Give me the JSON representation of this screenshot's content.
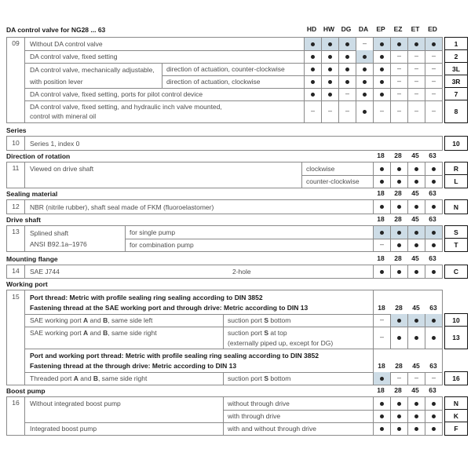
{
  "colors": {
    "highlight": "#cddce6",
    "grid_border": "#8a8a8a",
    "code_border": "#141414",
    "text": "#4d4d4d",
    "heading": "#1a1a1a"
  },
  "s09": {
    "title": "DA control valve for NG28 ... 63",
    "num": "09",
    "columns": [
      "HD",
      "HW",
      "DG",
      "DA",
      "EP",
      "EZ",
      "ET",
      "ED"
    ],
    "r1": {
      "desc": "Without DA control valve",
      "cells": [
        "●",
        "●",
        "●",
        "–",
        "●",
        "●",
        "●",
        "●"
      ],
      "hl": [
        1,
        1,
        1,
        0,
        1,
        1,
        1,
        1
      ],
      "code": "1"
    },
    "r2": {
      "desc": "DA control valve, fixed setting",
      "cells": [
        "●",
        "●",
        "●",
        "●",
        "●",
        "–",
        "–",
        "–"
      ],
      "hl": [
        0,
        0,
        0,
        1,
        0,
        0,
        0,
        0
      ],
      "code": "2"
    },
    "r34_desc": "DA control valve, mechanically adjustable,\nwith position lever",
    "r3": {
      "sub": "direction of actuation, counter-clockwise",
      "cells": [
        "●",
        "●",
        "●",
        "●",
        "●",
        "–",
        "–",
        "–"
      ],
      "code": "3L"
    },
    "r4": {
      "sub": "direction of actuation, clockwise",
      "cells": [
        "●",
        "●",
        "●",
        "●",
        "●",
        "–",
        "–",
        "–"
      ],
      "code": "3R"
    },
    "r5": {
      "desc": "DA control valve, fixed setting, ports for pilot control device",
      "cells": [
        "●",
        "●",
        "–",
        "●",
        "●",
        "–",
        "–",
        "–"
      ],
      "code": "7"
    },
    "r6": {
      "desc": "DA control valve, fixed setting, and hydraulic inch valve mounted,\ncontrol with mineral oil",
      "cells": [
        "–",
        "–",
        "–",
        "●",
        "–",
        "–",
        "–",
        "–"
      ],
      "code": "8"
    }
  },
  "series": {
    "title": "Series",
    "num": "10",
    "desc": "Series 1, index 0",
    "code": "10"
  },
  "rotation": {
    "title": "Direction of rotation",
    "columns": [
      "18",
      "28",
      "45",
      "63"
    ],
    "num": "11",
    "desc": "Viewed on drive shaft",
    "r1": {
      "sub": "clockwise",
      "cells": [
        "●",
        "●",
        "●",
        "●"
      ],
      "code": "R"
    },
    "r2": {
      "sub": "counter-clockwise",
      "cells": [
        "●",
        "●",
        "●",
        "●"
      ],
      "code": "L"
    }
  },
  "sealing": {
    "title": "Sealing material",
    "columns": [
      "18",
      "28",
      "45",
      "63"
    ],
    "num": "12",
    "desc": "NBR (nitrile rubber), shaft seal made of FKM (fluoroelastomer)",
    "cells": [
      "●",
      "●",
      "●",
      "●"
    ],
    "code": "N"
  },
  "drive": {
    "title": "Drive shaft",
    "columns": [
      "18",
      "28",
      "45",
      "63"
    ],
    "num": "13",
    "desc": "Splined shaft\nANSI B92.1a–1976",
    "r1": {
      "sub": "for single pump",
      "cells": [
        "●",
        "●",
        "●",
        "●"
      ],
      "hl": [
        1,
        1,
        1,
        1
      ],
      "code": "S"
    },
    "r2": {
      "sub": "for combination pump",
      "cells": [
        "–",
        "●",
        "●",
        "●"
      ],
      "code": "T"
    }
  },
  "mounting": {
    "title": "Mounting flange",
    "columns": [
      "18",
      "28",
      "45",
      "63"
    ],
    "num": "14",
    "desc": "SAE J744",
    "sub": "2-hole",
    "cells": [
      "●",
      "●",
      "●",
      "●"
    ],
    "code": "C"
  },
  "working": {
    "title": "Working port",
    "columns": [
      "18",
      "28",
      "45",
      "63"
    ],
    "num": "15",
    "h1": "Port thread: Metric with profile sealing ring sealing according to DIN 3852\nFastening thread at the SAE working port and through drive: Metric according to DIN 13",
    "r10": {
      "desc": "SAE working port **A** and **B**, same side left",
      "sub": "suction port **S** bottom",
      "cells": [
        "–",
        "●",
        "●",
        "●"
      ],
      "hl": [
        0,
        1,
        1,
        1
      ],
      "code": "10"
    },
    "r13": {
      "desc": "SAE working port **A** and **B**, same side right",
      "sub": "suction port **S** at top\n(externally piped up, except for DG)",
      "cells": [
        "–",
        "●",
        "●",
        "●"
      ],
      "code": "13"
    },
    "h2": "Port and working port thread: Metric with profile sealing ring sealing according to DIN 3852\nFastening thread at the through drive: Metric according to DIN 13",
    "r16": {
      "desc": "Threaded port **A** and **B**, same side right",
      "sub": "suction port **S** bottom",
      "cells": [
        "●",
        "–",
        "–",
        "–"
      ],
      "hl": [
        1,
        0,
        0,
        0
      ],
      "code": "16"
    }
  },
  "boost": {
    "title": "Boost pump",
    "columns": [
      "18",
      "28",
      "45",
      "63"
    ],
    "num": "16",
    "r1": {
      "desc": "Without integrated boost pump",
      "sub": "without through drive",
      "cells": [
        "●",
        "●",
        "●",
        "●"
      ],
      "code": "N"
    },
    "r2": {
      "sub": "with through drive",
      "cells": [
        "●",
        "●",
        "●",
        "●"
      ],
      "code": "K"
    },
    "r3": {
      "desc": "Integrated boost pump",
      "sub": "with and without through drive",
      "cells": [
        "●",
        "●",
        "●",
        "●"
      ],
      "code": "F"
    }
  }
}
